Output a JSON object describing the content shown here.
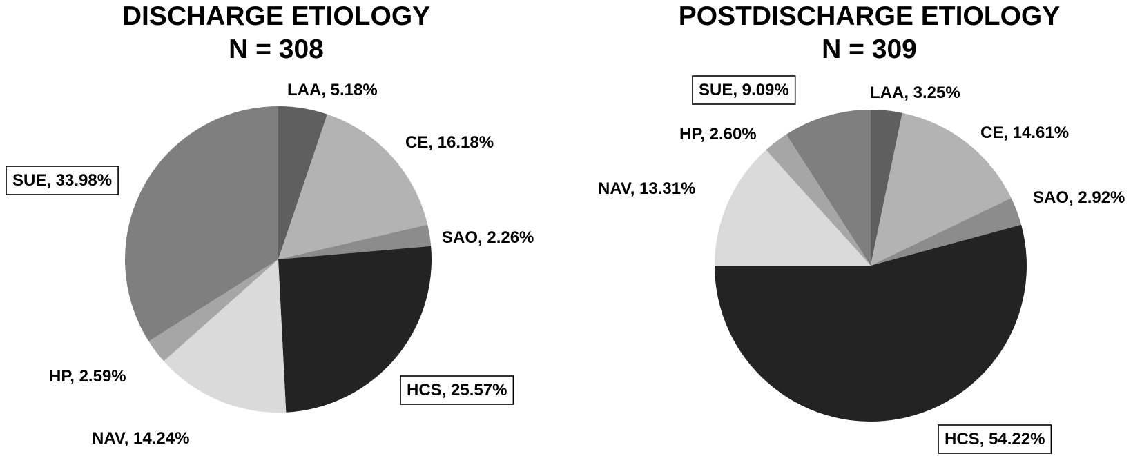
{
  "chart_data": [
    {
      "type": "pie",
      "title": "DISCHARGE ETIOLOGY",
      "subtitle": "N = 308",
      "slices": [
        {
          "label": "LAA",
          "value": 5.18,
          "label_text": "LAA, 5.18%",
          "color": "#5f5f5f",
          "boxed": false
        },
        {
          "label": "CE",
          "value": 16.18,
          "label_text": "CE, 16.18%",
          "color": "#b3b3b3",
          "boxed": false
        },
        {
          "label": "SAO",
          "value": 2.26,
          "label_text": "SAO, 2.26%",
          "color": "#8c8c8c",
          "boxed": false
        },
        {
          "label": "HCS",
          "value": 25.57,
          "label_text": "HCS, 25.57%",
          "color": "#232323",
          "boxed": true
        },
        {
          "label": "NAV",
          "value": 14.24,
          "label_text": "NAV, 14.24%",
          "color": "#dadada",
          "boxed": false
        },
        {
          "label": "HP",
          "value": 2.59,
          "label_text": "HP, 2.59%",
          "color": "#a6a6a6",
          "boxed": false
        },
        {
          "label": "SUE",
          "value": 33.98,
          "label_text": "SUE, 33.98%",
          "color": "#7f7f7f",
          "boxed": true
        }
      ]
    },
    {
      "type": "pie",
      "title": "POSTDISCHARGE ETIOLOGY",
      "subtitle": "N = 309",
      "slices": [
        {
          "label": "LAA",
          "value": 3.25,
          "label_text": "LAA, 3.25%",
          "color": "#5f5f5f",
          "boxed": false
        },
        {
          "label": "CE",
          "value": 14.61,
          "label_text": "CE, 14.61%",
          "color": "#b3b3b3",
          "boxed": false
        },
        {
          "label": "SAO",
          "value": 2.92,
          "label_text": "SAO, 2.92%",
          "color": "#8c8c8c",
          "boxed": false
        },
        {
          "label": "HCS",
          "value": 54.22,
          "label_text": "HCS, 54.22%",
          "color": "#232323",
          "boxed": true
        },
        {
          "label": "NAV",
          "value": 13.31,
          "label_text": "NAV, 13.31%",
          "color": "#dadada",
          "boxed": false
        },
        {
          "label": "HP",
          "value": 2.6,
          "label_text": "HP, 2.60%",
          "color": "#a6a6a6",
          "boxed": false
        },
        {
          "label": "SUE",
          "value": 9.09,
          "label_text": "SUE, 9.09%",
          "color": "#7f7f7f",
          "boxed": true
        }
      ]
    }
  ]
}
